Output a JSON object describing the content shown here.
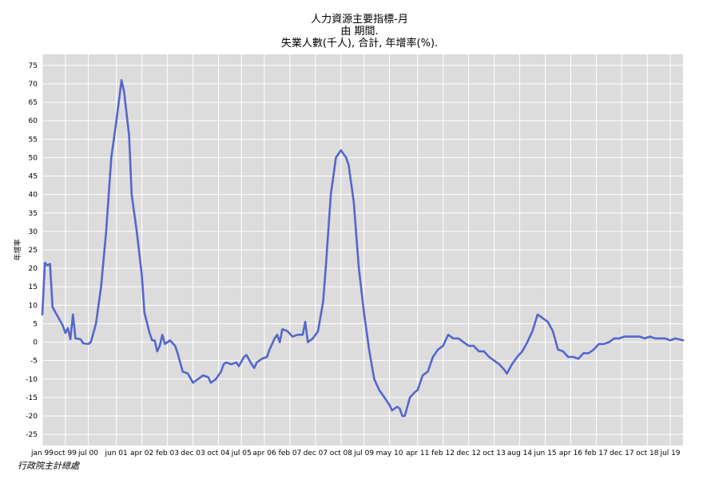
{
  "chart_data": {
    "type": "line",
    "title_lines": [
      "人力資源主要指標-月",
      "由 期間.",
      "失業人數(千人), 合計, 年增率(%)."
    ],
    "ylabel": "年增率",
    "ylim": [
      -28,
      78
    ],
    "yticks": [
      -25,
      -20,
      -15,
      -10,
      -5,
      0,
      5,
      10,
      15,
      20,
      25,
      30,
      35,
      40,
      45,
      50,
      55,
      60,
      65,
      70,
      75
    ],
    "xlim": [
      "1999-01",
      "2019-12"
    ],
    "xticks": [
      "jan 99",
      "oct 99",
      "jul 00",
      "jun 01",
      "apr 02",
      "feb 03",
      "dec 03",
      "oct 04",
      "jul 05",
      "apr 06",
      "feb 07",
      "dec 07",
      "oct 08",
      "jul 09",
      "may 10",
      "apr 11",
      "feb 12",
      "dec 12",
      "oct 13",
      "aug 14",
      "jun 15",
      "apr 16",
      "feb 17",
      "dec 17",
      "oct 18",
      "jul 19"
    ],
    "grid": true,
    "line_color": "#5566cc",
    "plot_bg": "#dcdcdc",
    "series": [
      {
        "points": [
          [
            "1999-01",
            7.5
          ],
          [
            "1999-02",
            21.5
          ],
          [
            "1999-03",
            20.8
          ],
          [
            "1999-04",
            21.2
          ],
          [
            "1999-05",
            9.5
          ],
          [
            "1999-07",
            7.0
          ],
          [
            "1999-09",
            4.5
          ],
          [
            "1999-10",
            2.5
          ],
          [
            "1999-11",
            3.8
          ],
          [
            "1999-12",
            0.8
          ],
          [
            "2000-01",
            7.5
          ],
          [
            "2000-02",
            1.0
          ],
          [
            "2000-04",
            0.8
          ],
          [
            "2000-05",
            -0.3
          ],
          [
            "2000-07",
            -0.5
          ],
          [
            "2000-08",
            0.0
          ],
          [
            "2000-10",
            5.0
          ],
          [
            "2000-12",
            15.0
          ],
          [
            "2001-02",
            30.0
          ],
          [
            "2001-04",
            50.0
          ],
          [
            "2001-06",
            60.0
          ],
          [
            "2001-08",
            71.0
          ],
          [
            "2001-09",
            68.0
          ],
          [
            "2001-10",
            62.0
          ],
          [
            "2001-11",
            56.0
          ],
          [
            "2001-12",
            40.0
          ],
          [
            "2002-02",
            30.0
          ],
          [
            "2002-04",
            18.0
          ],
          [
            "2002-05",
            8.0
          ],
          [
            "2002-07",
            2.5
          ],
          [
            "2002-08",
            0.5
          ],
          [
            "2002-09",
            0.5
          ],
          [
            "2002-10",
            -2.5
          ],
          [
            "2002-11",
            -1.0
          ],
          [
            "2002-12",
            2.0
          ],
          [
            "2003-01",
            -0.5
          ],
          [
            "2003-03",
            0.5
          ],
          [
            "2003-05",
            -1.0
          ],
          [
            "2003-06",
            -3.0
          ],
          [
            "2003-08",
            -8.0
          ],
          [
            "2003-10",
            -8.5
          ],
          [
            "2003-12",
            -11.0
          ],
          [
            "2004-02",
            -10.0
          ],
          [
            "2004-04",
            -9.0
          ],
          [
            "2004-06",
            -9.5
          ],
          [
            "2004-07",
            -11.0
          ],
          [
            "2004-09",
            -10.0
          ],
          [
            "2004-11",
            -8.0
          ],
          [
            "2004-12",
            -6.0
          ],
          [
            "2005-01",
            -5.5
          ],
          [
            "2005-03",
            -6.0
          ],
          [
            "2005-05",
            -5.5
          ],
          [
            "2005-06",
            -6.5
          ],
          [
            "2005-08",
            -4.0
          ],
          [
            "2005-09",
            -3.5
          ],
          [
            "2005-11",
            -6.0
          ],
          [
            "2005-12",
            -7.0
          ],
          [
            "2006-01",
            -5.5
          ],
          [
            "2006-03",
            -4.5
          ],
          [
            "2006-05",
            -4.0
          ],
          [
            "2006-06",
            -2.0
          ],
          [
            "2006-08",
            1.0
          ],
          [
            "2006-09",
            2.0
          ],
          [
            "2006-10",
            0.0
          ],
          [
            "2006-11",
            3.5
          ],
          [
            "2007-01",
            3.0
          ],
          [
            "2007-03",
            1.5
          ],
          [
            "2007-05",
            2.0
          ],
          [
            "2007-07",
            2.0
          ],
          [
            "2007-08",
            5.5
          ],
          [
            "2007-09",
            0.0
          ],
          [
            "2007-11",
            1.0
          ],
          [
            "2008-01",
            3.0
          ],
          [
            "2008-03",
            11.0
          ],
          [
            "2008-04",
            20.0
          ],
          [
            "2008-06",
            40.0
          ],
          [
            "2008-08",
            50.0
          ],
          [
            "2008-10",
            52.0
          ],
          [
            "2008-12",
            50.0
          ],
          [
            "2009-01",
            48.0
          ],
          [
            "2009-03",
            38.0
          ],
          [
            "2009-05",
            20.0
          ],
          [
            "2009-07",
            8.0
          ],
          [
            "2009-09",
            -2.0
          ],
          [
            "2009-11",
            -10.0
          ],
          [
            "2010-01",
            -13.0
          ],
          [
            "2010-03",
            -15.0
          ],
          [
            "2010-05",
            -17.0
          ],
          [
            "2010-06",
            -18.5
          ],
          [
            "2010-08",
            -17.5
          ],
          [
            "2010-09",
            -18.0
          ],
          [
            "2010-10",
            -20.0
          ],
          [
            "2010-11",
            -20.0
          ],
          [
            "2011-01",
            -15.0
          ],
          [
            "2011-03",
            -13.5
          ],
          [
            "2011-04",
            -13.0
          ],
          [
            "2011-06",
            -9.0
          ],
          [
            "2011-08",
            -8.0
          ],
          [
            "2011-10",
            -4.0
          ],
          [
            "2011-12",
            -2.0
          ],
          [
            "2012-02",
            -1.0
          ],
          [
            "2012-04",
            2.0
          ],
          [
            "2012-06",
            1.0
          ],
          [
            "2012-08",
            1.0
          ],
          [
            "2012-10",
            0.0
          ],
          [
            "2012-12",
            -1.0
          ],
          [
            "2013-02",
            -1.0
          ],
          [
            "2013-04",
            -2.5
          ],
          [
            "2013-06",
            -2.5
          ],
          [
            "2013-08",
            -4.0
          ],
          [
            "2013-10",
            -5.0
          ],
          [
            "2013-12",
            -6.0
          ],
          [
            "2014-02",
            -7.5
          ],
          [
            "2014-03",
            -8.5
          ],
          [
            "2014-05",
            -6.0
          ],
          [
            "2014-07",
            -4.0
          ],
          [
            "2014-09",
            -2.5
          ],
          [
            "2014-11",
            0.0
          ],
          [
            "2015-01",
            3.0
          ],
          [
            "2015-03",
            7.5
          ],
          [
            "2015-05",
            6.5
          ],
          [
            "2015-07",
            5.5
          ],
          [
            "2015-09",
            3.0
          ],
          [
            "2015-11",
            -2.0
          ],
          [
            "2016-01",
            -2.5
          ],
          [
            "2016-03",
            -4.0
          ],
          [
            "2016-05",
            -4.0
          ],
          [
            "2016-07",
            -4.5
          ],
          [
            "2016-09",
            -3.0
          ],
          [
            "2016-11",
            -3.0
          ],
          [
            "2017-01",
            -2.0
          ],
          [
            "2017-03",
            -0.5
          ],
          [
            "2017-05",
            -0.5
          ],
          [
            "2017-07",
            0.0
          ],
          [
            "2017-09",
            1.0
          ],
          [
            "2017-11",
            1.0
          ],
          [
            "2018-01",
            1.5
          ],
          [
            "2018-03",
            1.5
          ],
          [
            "2018-05",
            1.5
          ],
          [
            "2018-07",
            1.5
          ],
          [
            "2018-09",
            1.0
          ],
          [
            "2018-11",
            1.5
          ],
          [
            "2019-01",
            1.0
          ],
          [
            "2019-03",
            1.0
          ],
          [
            "2019-05",
            1.0
          ],
          [
            "2019-07",
            0.5
          ],
          [
            "2019-09",
            1.0
          ],
          [
            "2019-12",
            0.5
          ]
        ]
      }
    ]
  },
  "footer": {
    "credit": "行政院主計總處"
  }
}
